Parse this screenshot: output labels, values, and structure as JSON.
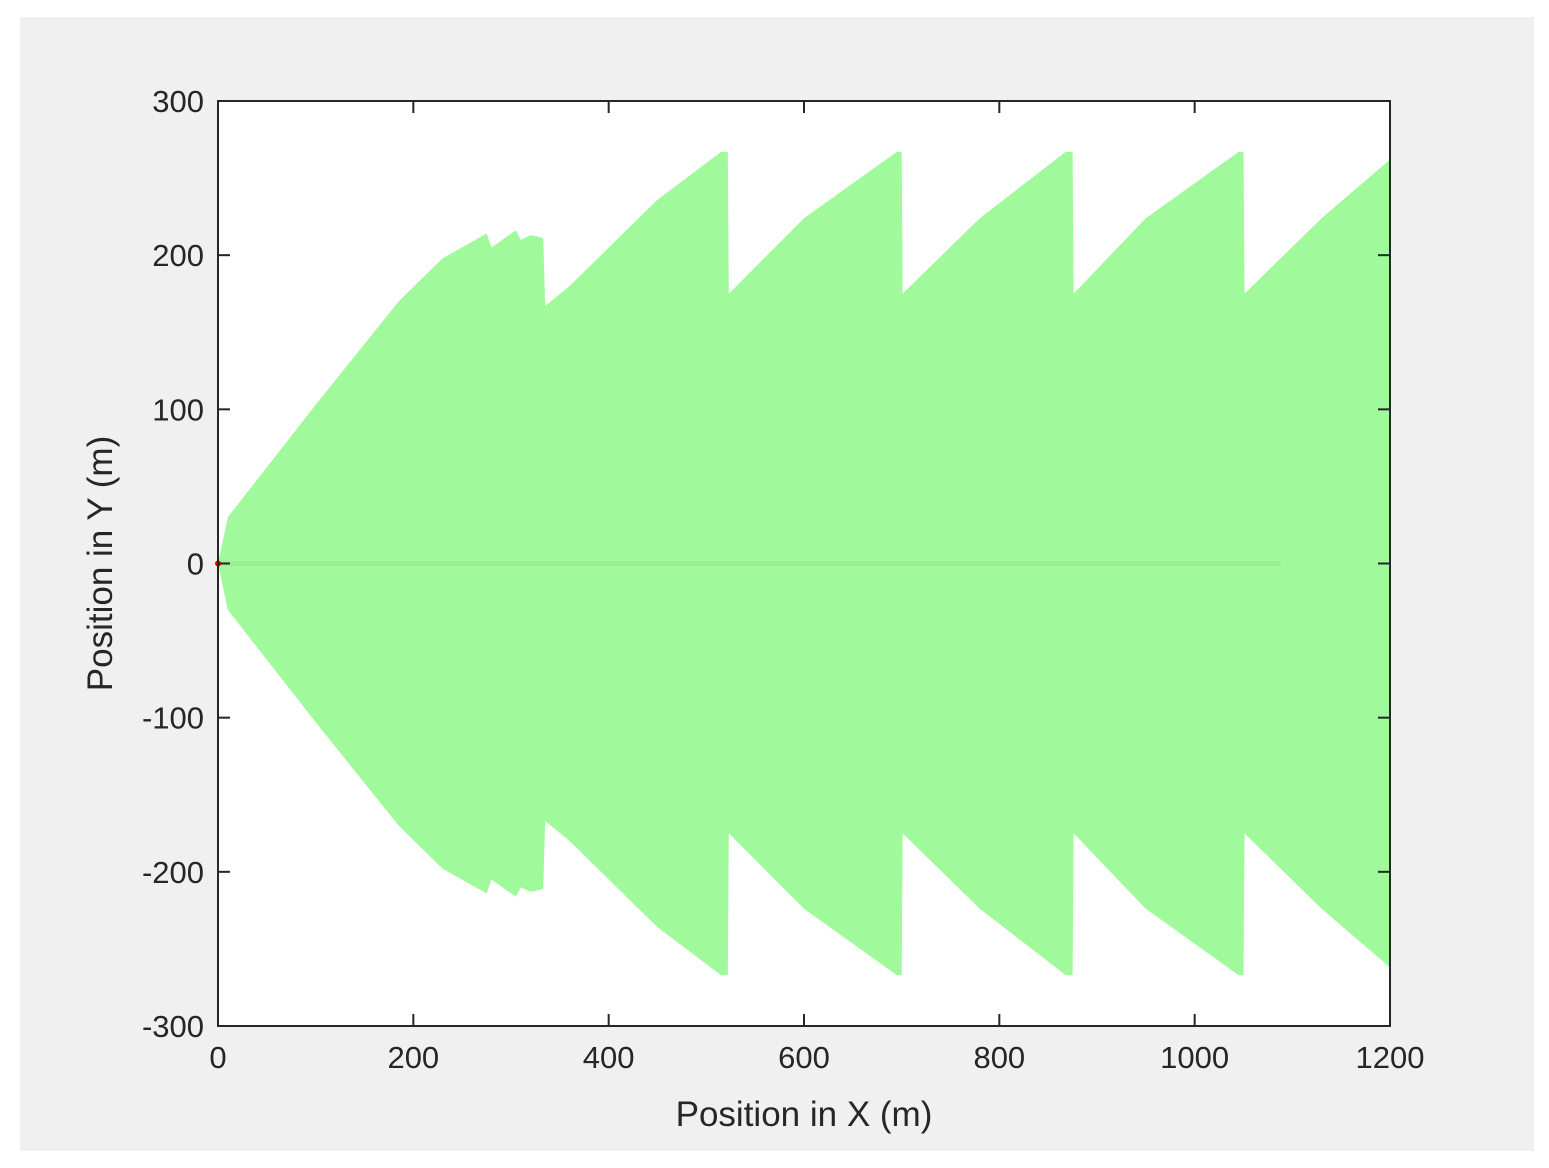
{
  "chart_data": {
    "type": "area",
    "title": "",
    "xlabel": "Position in X (m)",
    "ylabel": "Position in Y (m)",
    "xlim": [
      0,
      1200
    ],
    "ylim": [
      -300,
      300
    ],
    "xticks": [
      0,
      200,
      400,
      600,
      800,
      1000,
      1200
    ],
    "yticks": [
      -300,
      -200,
      -100,
      0,
      100,
      200,
      300
    ],
    "xtick_labels": [
      "0",
      "200",
      "400",
      "600",
      "800",
      "1000",
      "1200"
    ],
    "ytick_labels": [
      "-300",
      "-200",
      "-100",
      "0",
      "100",
      "200",
      "300"
    ],
    "grid": false,
    "legend": "none",
    "colors": {
      "fill": "#a0f99a",
      "centerline": "#9aef93",
      "origin_marker": "#ff0000",
      "figure_background": "#f0f0f0",
      "axes_background": "#ffffff"
    },
    "series": [
      {
        "kind": "envelope",
        "symmetric_about_y0": true,
        "upper": [
          [
            0,
            0
          ],
          [
            10,
            30
          ],
          [
            100,
            103
          ],
          [
            185,
            170
          ],
          [
            230,
            198
          ],
          [
            275,
            214
          ],
          [
            280,
            205
          ],
          [
            300,
            214
          ],
          [
            305,
            216
          ],
          [
            310,
            210
          ],
          [
            320,
            213
          ],
          [
            328,
            212
          ],
          [
            333,
            211
          ],
          [
            335,
            167
          ],
          [
            360,
            180
          ],
          [
            450,
            236
          ],
          [
            515,
            267
          ],
          [
            522,
            267
          ],
          [
            523,
            175
          ],
          [
            600,
            224
          ],
          [
            695,
            267
          ],
          [
            700,
            267
          ],
          [
            701,
            175
          ],
          [
            780,
            224
          ],
          [
            868,
            267
          ],
          [
            875,
            267
          ],
          [
            876,
            175
          ],
          [
            950,
            224
          ],
          [
            1045,
            267
          ],
          [
            1050,
            267
          ],
          [
            1051,
            175
          ],
          [
            1130,
            224
          ],
          [
            1200,
            262
          ]
        ]
      },
      {
        "kind": "centerline",
        "points": [
          [
            0,
            0
          ],
          [
            1088,
            0
          ]
        ]
      },
      {
        "kind": "marker",
        "points": [
          [
            0,
            0
          ]
        ]
      }
    ]
  }
}
